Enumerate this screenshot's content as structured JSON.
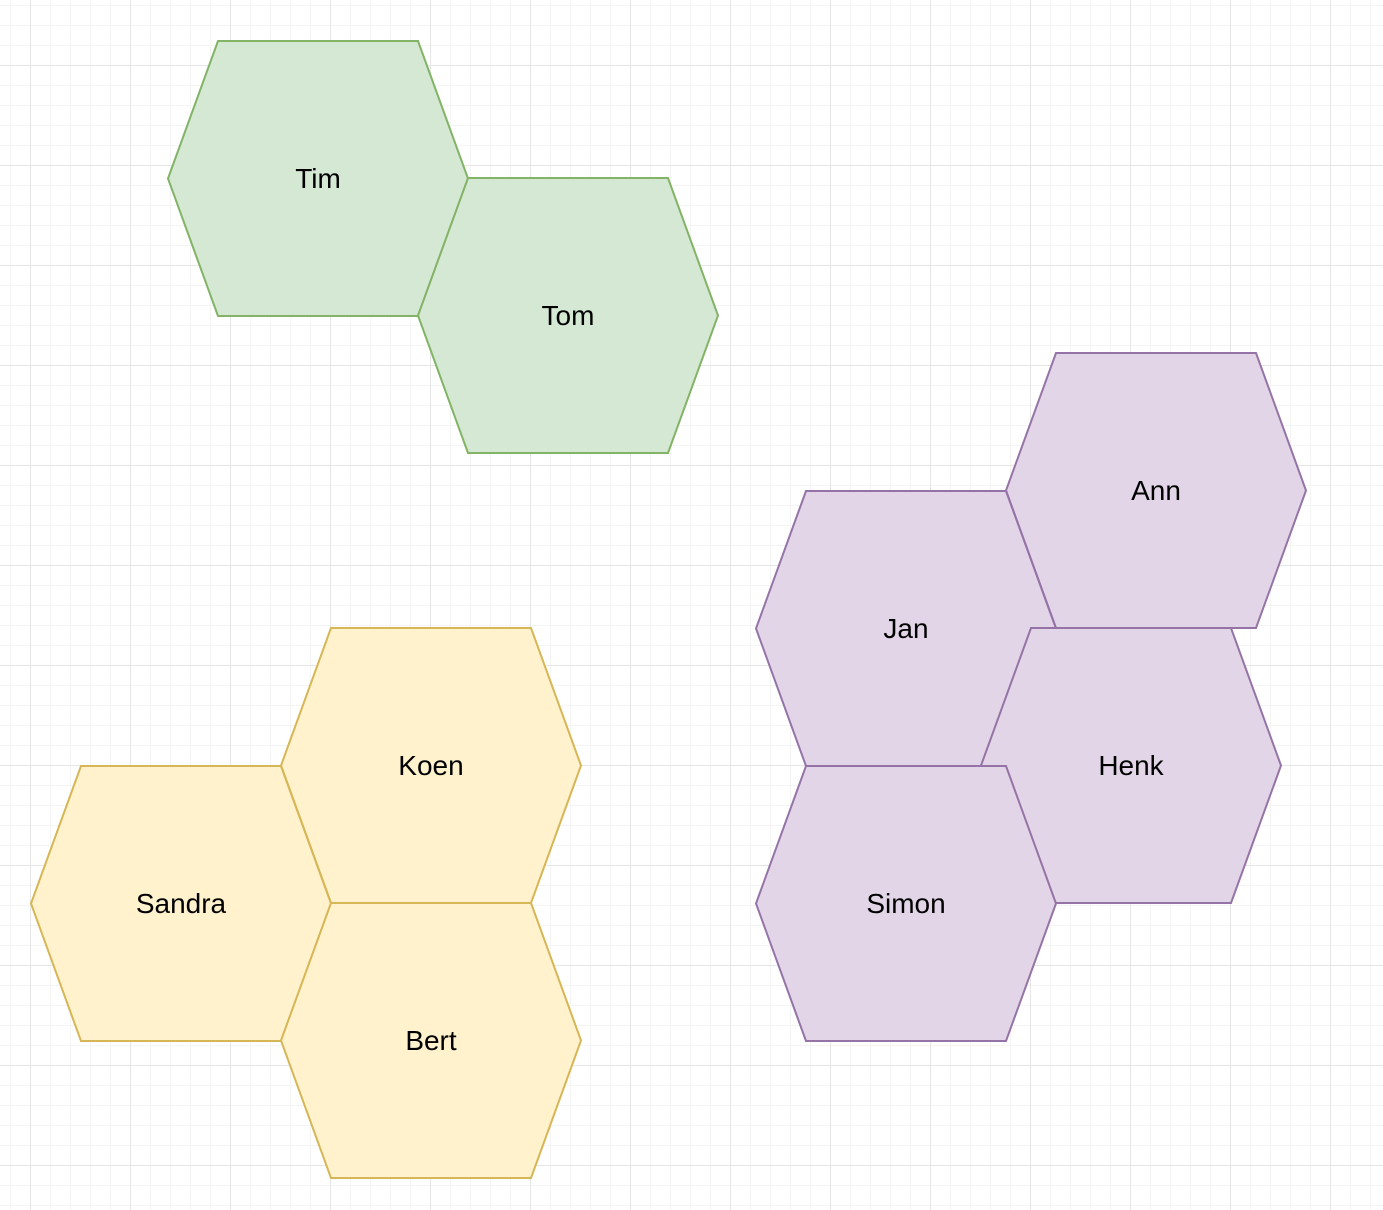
{
  "groups": [
    {
      "name": "green-group",
      "fill": "#d5e8d4",
      "stroke": "#82b366",
      "nodes": [
        {
          "label": "Tim"
        },
        {
          "label": "Tom"
        }
      ]
    },
    {
      "name": "yellow-group",
      "fill": "#fff2cc",
      "stroke": "#d6b656",
      "nodes": [
        {
          "label": "Koen"
        },
        {
          "label": "Sandra"
        },
        {
          "label": "Bert"
        }
      ]
    },
    {
      "name": "purple-group",
      "fill": "#e1d5e7",
      "stroke": "#9673a6",
      "nodes": [
        {
          "label": "Ann"
        },
        {
          "label": "Jan"
        },
        {
          "label": "Henk"
        },
        {
          "label": "Simon"
        }
      ]
    }
  ]
}
